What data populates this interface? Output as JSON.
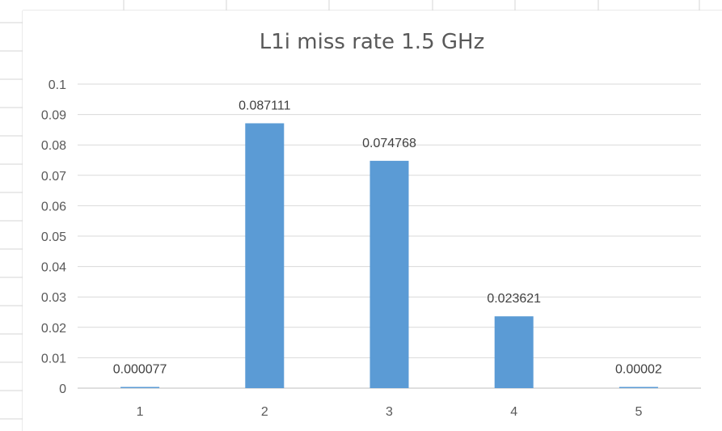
{
  "chart_data": {
    "type": "bar",
    "title": "L1i miss rate 1.5 GHz",
    "categories": [
      "1",
      "2",
      "3",
      "4",
      "5"
    ],
    "values": [
      7.7e-05,
      0.087111,
      0.074768,
      0.023621,
      2e-05
    ],
    "data_labels": [
      "0.000077",
      "0.087111",
      "0.074768",
      "0.023621",
      "0.00002"
    ],
    "y_ticks": [
      "0",
      "0.01",
      "0.02",
      "0.03",
      "0.04",
      "0.05",
      "0.06",
      "0.07",
      "0.08",
      "0.09",
      "0.1"
    ],
    "ylim": [
      0,
      0.1
    ],
    "xlabel": "",
    "ylabel": "",
    "grid": true,
    "legend": "none",
    "bar_color": "#5b9bd5"
  },
  "colors": {
    "gridline": "#d9d9d9",
    "axis": "#bfbfbf",
    "sheet_grid": "#d4d4d4"
  }
}
